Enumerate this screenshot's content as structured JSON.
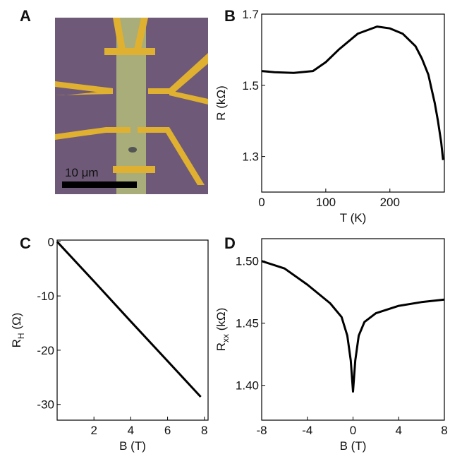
{
  "image_panel": {
    "panel_label": "A",
    "scale_bar": "10 μm"
  },
  "chart_data": [
    {
      "type": "line",
      "panel_label": "B",
      "x_label": "T (K)",
      "y_label": "R (kΩ)",
      "color": "#000000",
      "x": [
        0,
        20,
        50,
        80,
        100,
        120,
        150,
        180,
        200,
        220,
        240,
        250,
        260,
        265,
        270,
        275,
        280,
        283
      ],
      "values": [
        1.54,
        1.537,
        1.535,
        1.54,
        1.565,
        1.6,
        1.645,
        1.665,
        1.66,
        1.645,
        1.61,
        1.575,
        1.53,
        1.49,
        1.45,
        1.4,
        1.34,
        1.29
      ],
      "xlim": [
        0,
        285
      ],
      "ylim": [
        1.2,
        1.7
      ],
      "xticks": [
        0,
        100,
        200
      ],
      "yticks": [
        {
          "value": 1.3,
          "label": "1.3"
        },
        {
          "value": 1.5,
          "label": "1.5"
        },
        {
          "value": 1.7,
          "label": "1.7"
        }
      ]
    },
    {
      "type": "line",
      "panel_label": "C",
      "x_label": "B (T)",
      "y_label": {
        "base": "R",
        "sub": "H",
        "rest": " (Ω)"
      },
      "color": "#000000",
      "x": [
        0,
        2,
        4,
        6,
        7.8
      ],
      "values": [
        0,
        -7.3,
        -14.7,
        -22,
        -28.6
      ],
      "xlim": [
        0,
        8.2
      ],
      "ylim": [
        -32.9,
        0.3
      ],
      "xticks": [
        2,
        4,
        6,
        8
      ],
      "yticks": [
        -30,
        -20,
        -10,
        0
      ]
    },
    {
      "type": "line",
      "panel_label": "D",
      "x_label": "B (T)",
      "y_label": {
        "base": "R",
        "sub": "xx",
        "rest": " (kΩ)"
      },
      "color": "#000000",
      "x": [
        -8,
        -6,
        -4,
        -2,
        -1,
        -0.5,
        -0.2,
        0,
        0.2,
        0.5,
        1,
        2,
        4,
        6,
        8
      ],
      "values": [
        1.5,
        1.494,
        1.481,
        1.466,
        1.455,
        1.44,
        1.42,
        1.395,
        1.42,
        1.44,
        1.451,
        1.458,
        1.464,
        1.467,
        1.469
      ],
      "xlim": [
        -8,
        8
      ],
      "ylim": [
        1.372,
        1.518
      ],
      "xticks": [
        -8,
        -4,
        0,
        4,
        8
      ],
      "yticks": [
        {
          "value": 1.4,
          "label": "1.40"
        },
        {
          "value": 1.45,
          "label": "1.45"
        },
        {
          "value": 1.5,
          "label": "1.50"
        }
      ]
    }
  ]
}
